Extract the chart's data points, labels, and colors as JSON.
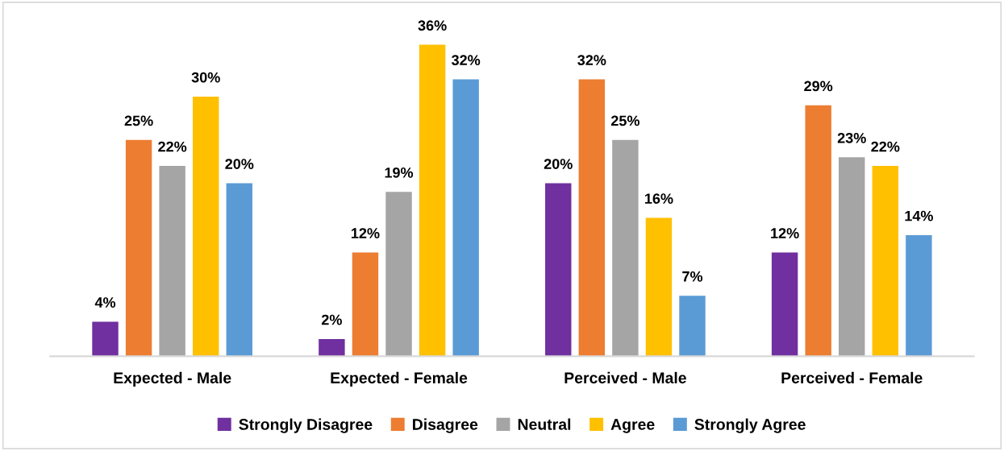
{
  "chart_data": {
    "type": "bar",
    "categories": [
      "Expected - Male",
      "Expected - Female",
      "Perceived - Male",
      "Perceived - Female"
    ],
    "series": [
      {
        "name": "Strongly Disagree",
        "color": "#7030a0",
        "values": [
          4,
          2,
          20,
          12
        ],
        "value_labels": [
          "4%",
          "2%",
          "20%",
          "12%"
        ]
      },
      {
        "name": "Disagree",
        "color": "#ed7d31",
        "values": [
          25,
          12,
          32,
          29
        ],
        "value_labels": [
          "25%",
          "12%",
          "32%",
          "29%"
        ]
      },
      {
        "name": "Neutral",
        "color": "#a5a5a5",
        "values": [
          22,
          19,
          25,
          23
        ],
        "value_labels": [
          "22%",
          "19%",
          "25%",
          "23%"
        ]
      },
      {
        "name": "Agree",
        "color": "#ffc000",
        "values": [
          30,
          36,
          16,
          22
        ],
        "value_labels": [
          "30%",
          "36%",
          "16%",
          "22%"
        ]
      },
      {
        "name": "Strongly Agree",
        "color": "#5b9bd5",
        "values": [
          20,
          32,
          7,
          14
        ],
        "value_labels": [
          "20%",
          "32%",
          "7%",
          "14%"
        ]
      }
    ],
    "grid": false,
    "legend": "bottom"
  }
}
